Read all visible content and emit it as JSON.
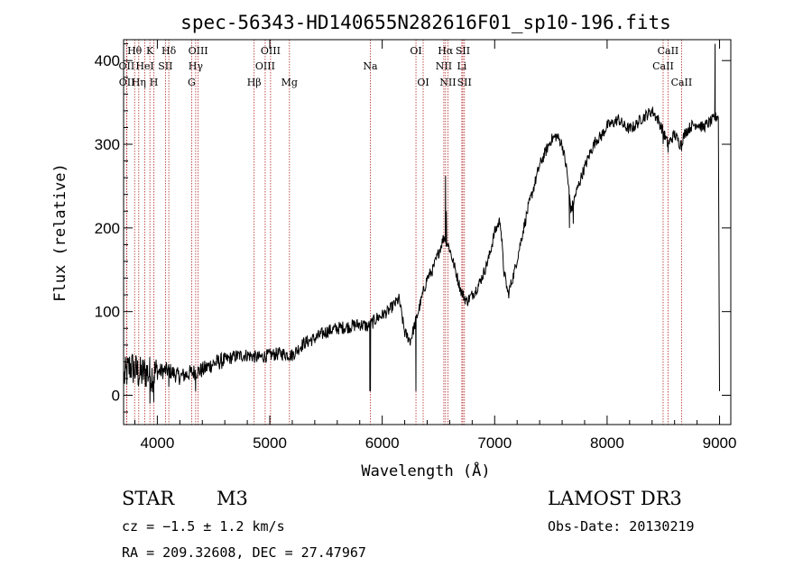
{
  "chart_data": {
    "type": "line",
    "title": "spec-56343-HD140655N282616F01_sp10-196.fits",
    "xlabel": "Wavelength (Å)",
    "ylabel": "Flux (relative)",
    "xlim": [
      3700,
      9100
    ],
    "ylim": [
      -35,
      425
    ],
    "xticks": [
      4000,
      5000,
      6000,
      7000,
      8000,
      9000
    ],
    "yticks": [
      0,
      100,
      200,
      300,
      400
    ],
    "series": [
      {
        "name": "spectrum",
        "anchors": [
          [
            3700,
            20
          ],
          [
            3760,
            35
          ],
          [
            3800,
            30
          ],
          [
            3850,
            25
          ],
          [
            3900,
            28
          ],
          [
            3950,
            25
          ],
          [
            4000,
            28
          ],
          [
            4100,
            30
          ],
          [
            4200,
            22
          ],
          [
            4300,
            27
          ],
          [
            4400,
            30
          ],
          [
            4500,
            38
          ],
          [
            4600,
            42
          ],
          [
            4700,
            47
          ],
          [
            4800,
            48
          ],
          [
            4900,
            45
          ],
          [
            5000,
            48
          ],
          [
            5100,
            50
          ],
          [
            5200,
            48
          ],
          [
            5300,
            62
          ],
          [
            5400,
            68
          ],
          [
            5500,
            76
          ],
          [
            5600,
            80
          ],
          [
            5700,
            82
          ],
          [
            5800,
            85
          ],
          [
            5880,
            82
          ],
          [
            5950,
            92
          ],
          [
            6050,
            100
          ],
          [
            6150,
            115
          ],
          [
            6200,
            75
          ],
          [
            6250,
            65
          ],
          [
            6300,
            90
          ],
          [
            6400,
            140
          ],
          [
            6450,
            150
          ],
          [
            6500,
            170
          ],
          [
            6550,
            190
          ],
          [
            6600,
            175
          ],
          [
            6650,
            150
          ],
          [
            6700,
            125
          ],
          [
            6750,
            112
          ],
          [
            6800,
            120
          ],
          [
            6850,
            130
          ],
          [
            6900,
            145
          ],
          [
            6950,
            165
          ],
          [
            7000,
            195
          ],
          [
            7050,
            210
          ],
          [
            7080,
            150
          ],
          [
            7120,
            120
          ],
          [
            7180,
            150
          ],
          [
            7250,
            195
          ],
          [
            7300,
            225
          ],
          [
            7350,
            250
          ],
          [
            7400,
            275
          ],
          [
            7450,
            290
          ],
          [
            7500,
            305
          ],
          [
            7550,
            310
          ],
          [
            7600,
            300
          ],
          [
            7640,
            270
          ],
          [
            7680,
            220
          ],
          [
            7720,
            240
          ],
          [
            7780,
            265
          ],
          [
            7850,
            290
          ],
          [
            7900,
            305
          ],
          [
            7950,
            310
          ],
          [
            8000,
            322
          ],
          [
            8050,
            325
          ],
          [
            8100,
            330
          ],
          [
            8150,
            322
          ],
          [
            8200,
            318
          ],
          [
            8250,
            322
          ],
          [
            8300,
            330
          ],
          [
            8350,
            335
          ],
          [
            8400,
            340
          ],
          [
            8450,
            330
          ],
          [
            8500,
            315
          ],
          [
            8540,
            300
          ],
          [
            8600,
            312
          ],
          [
            8650,
            300
          ],
          [
            8700,
            315
          ],
          [
            8750,
            322
          ],
          [
            8800,
            325
          ],
          [
            8850,
            320
          ],
          [
            8900,
            325
          ],
          [
            8950,
            330
          ],
          [
            8990,
            335
          ]
        ],
        "features": [
          [
            3934,
            -10
          ],
          [
            3969,
            -8
          ],
          [
            4102,
            10
          ],
          [
            4340,
            5
          ],
          [
            5895,
            5
          ],
          [
            5890,
            5
          ],
          [
            6300,
            5
          ],
          [
            6563,
            262
          ],
          [
            6570,
            220
          ],
          [
            7665,
            200
          ],
          [
            7699,
            205
          ],
          [
            8498,
            300
          ],
          [
            8542,
            290
          ],
          [
            8662,
            292
          ],
          [
            8960,
            420
          ],
          [
            9000,
            5
          ]
        ]
      }
    ],
    "spectral_lines": [
      {
        "label": "Hθ",
        "x": 3798,
        "row": 1
      },
      {
        "label": "OII",
        "x": 3727,
        "row": 2
      },
      {
        "label": "OII",
        "x": 3729,
        "row": 3
      },
      {
        "label": "Hη",
        "x": 3835,
        "row": 3
      },
      {
        "label": "K",
        "x": 3934,
        "row": 1
      },
      {
        "label": "H",
        "x": 3969,
        "row": 3
      },
      {
        "label": "HeI",
        "x": 3889,
        "row": 2
      },
      {
        "label": "SII",
        "x": 4072,
        "row": 2
      },
      {
        "label": "Hδ",
        "x": 4102,
        "row": 1
      },
      {
        "label": "OIII",
        "x": 4363,
        "row": 1
      },
      {
        "label": "Hγ",
        "x": 4341,
        "row": 2
      },
      {
        "label": "G",
        "x": 4305,
        "row": 3
      },
      {
        "label": "Hβ",
        "x": 4861,
        "row": 3
      },
      {
        "label": "OIII",
        "x": 5007,
        "row": 1
      },
      {
        "label": "OIII",
        "x": 4959,
        "row": 2
      },
      {
        "label": "Mg",
        "x": 5175,
        "row": 3
      },
      {
        "label": "Na",
        "x": 5894,
        "row": 2
      },
      {
        "label": "OI",
        "x": 6300,
        "row": 1
      },
      {
        "label": "OI",
        "x": 6364,
        "row": 3
      },
      {
        "label": "Hα",
        "x": 6563,
        "row": 1
      },
      {
        "label": "NII",
        "x": 6548,
        "row": 2
      },
      {
        "label": "NII",
        "x": 6584,
        "row": 3
      },
      {
        "label": "SII",
        "x": 6717,
        "row": 1
      },
      {
        "label": "Li",
        "x": 6708,
        "row": 2
      },
      {
        "label": "SII",
        "x": 6731,
        "row": 3
      },
      {
        "label": "CaII",
        "x": 8542,
        "row": 1
      },
      {
        "label": "CaII",
        "x": 8498,
        "row": 2
      },
      {
        "label": "CaII",
        "x": 8662,
        "row": 3
      }
    ]
  },
  "info": {
    "object_type": "STAR",
    "subclass": "M3",
    "survey": "LAMOST DR3",
    "cz": "cz = −1.5 ± 1.2 km/s",
    "obs_date": "Obs-Date: 20130219",
    "coords": "RA = 209.32608, DEC =  27.47967"
  },
  "colors": {
    "line_marker": "#b22222",
    "spectrum": "#000000"
  }
}
